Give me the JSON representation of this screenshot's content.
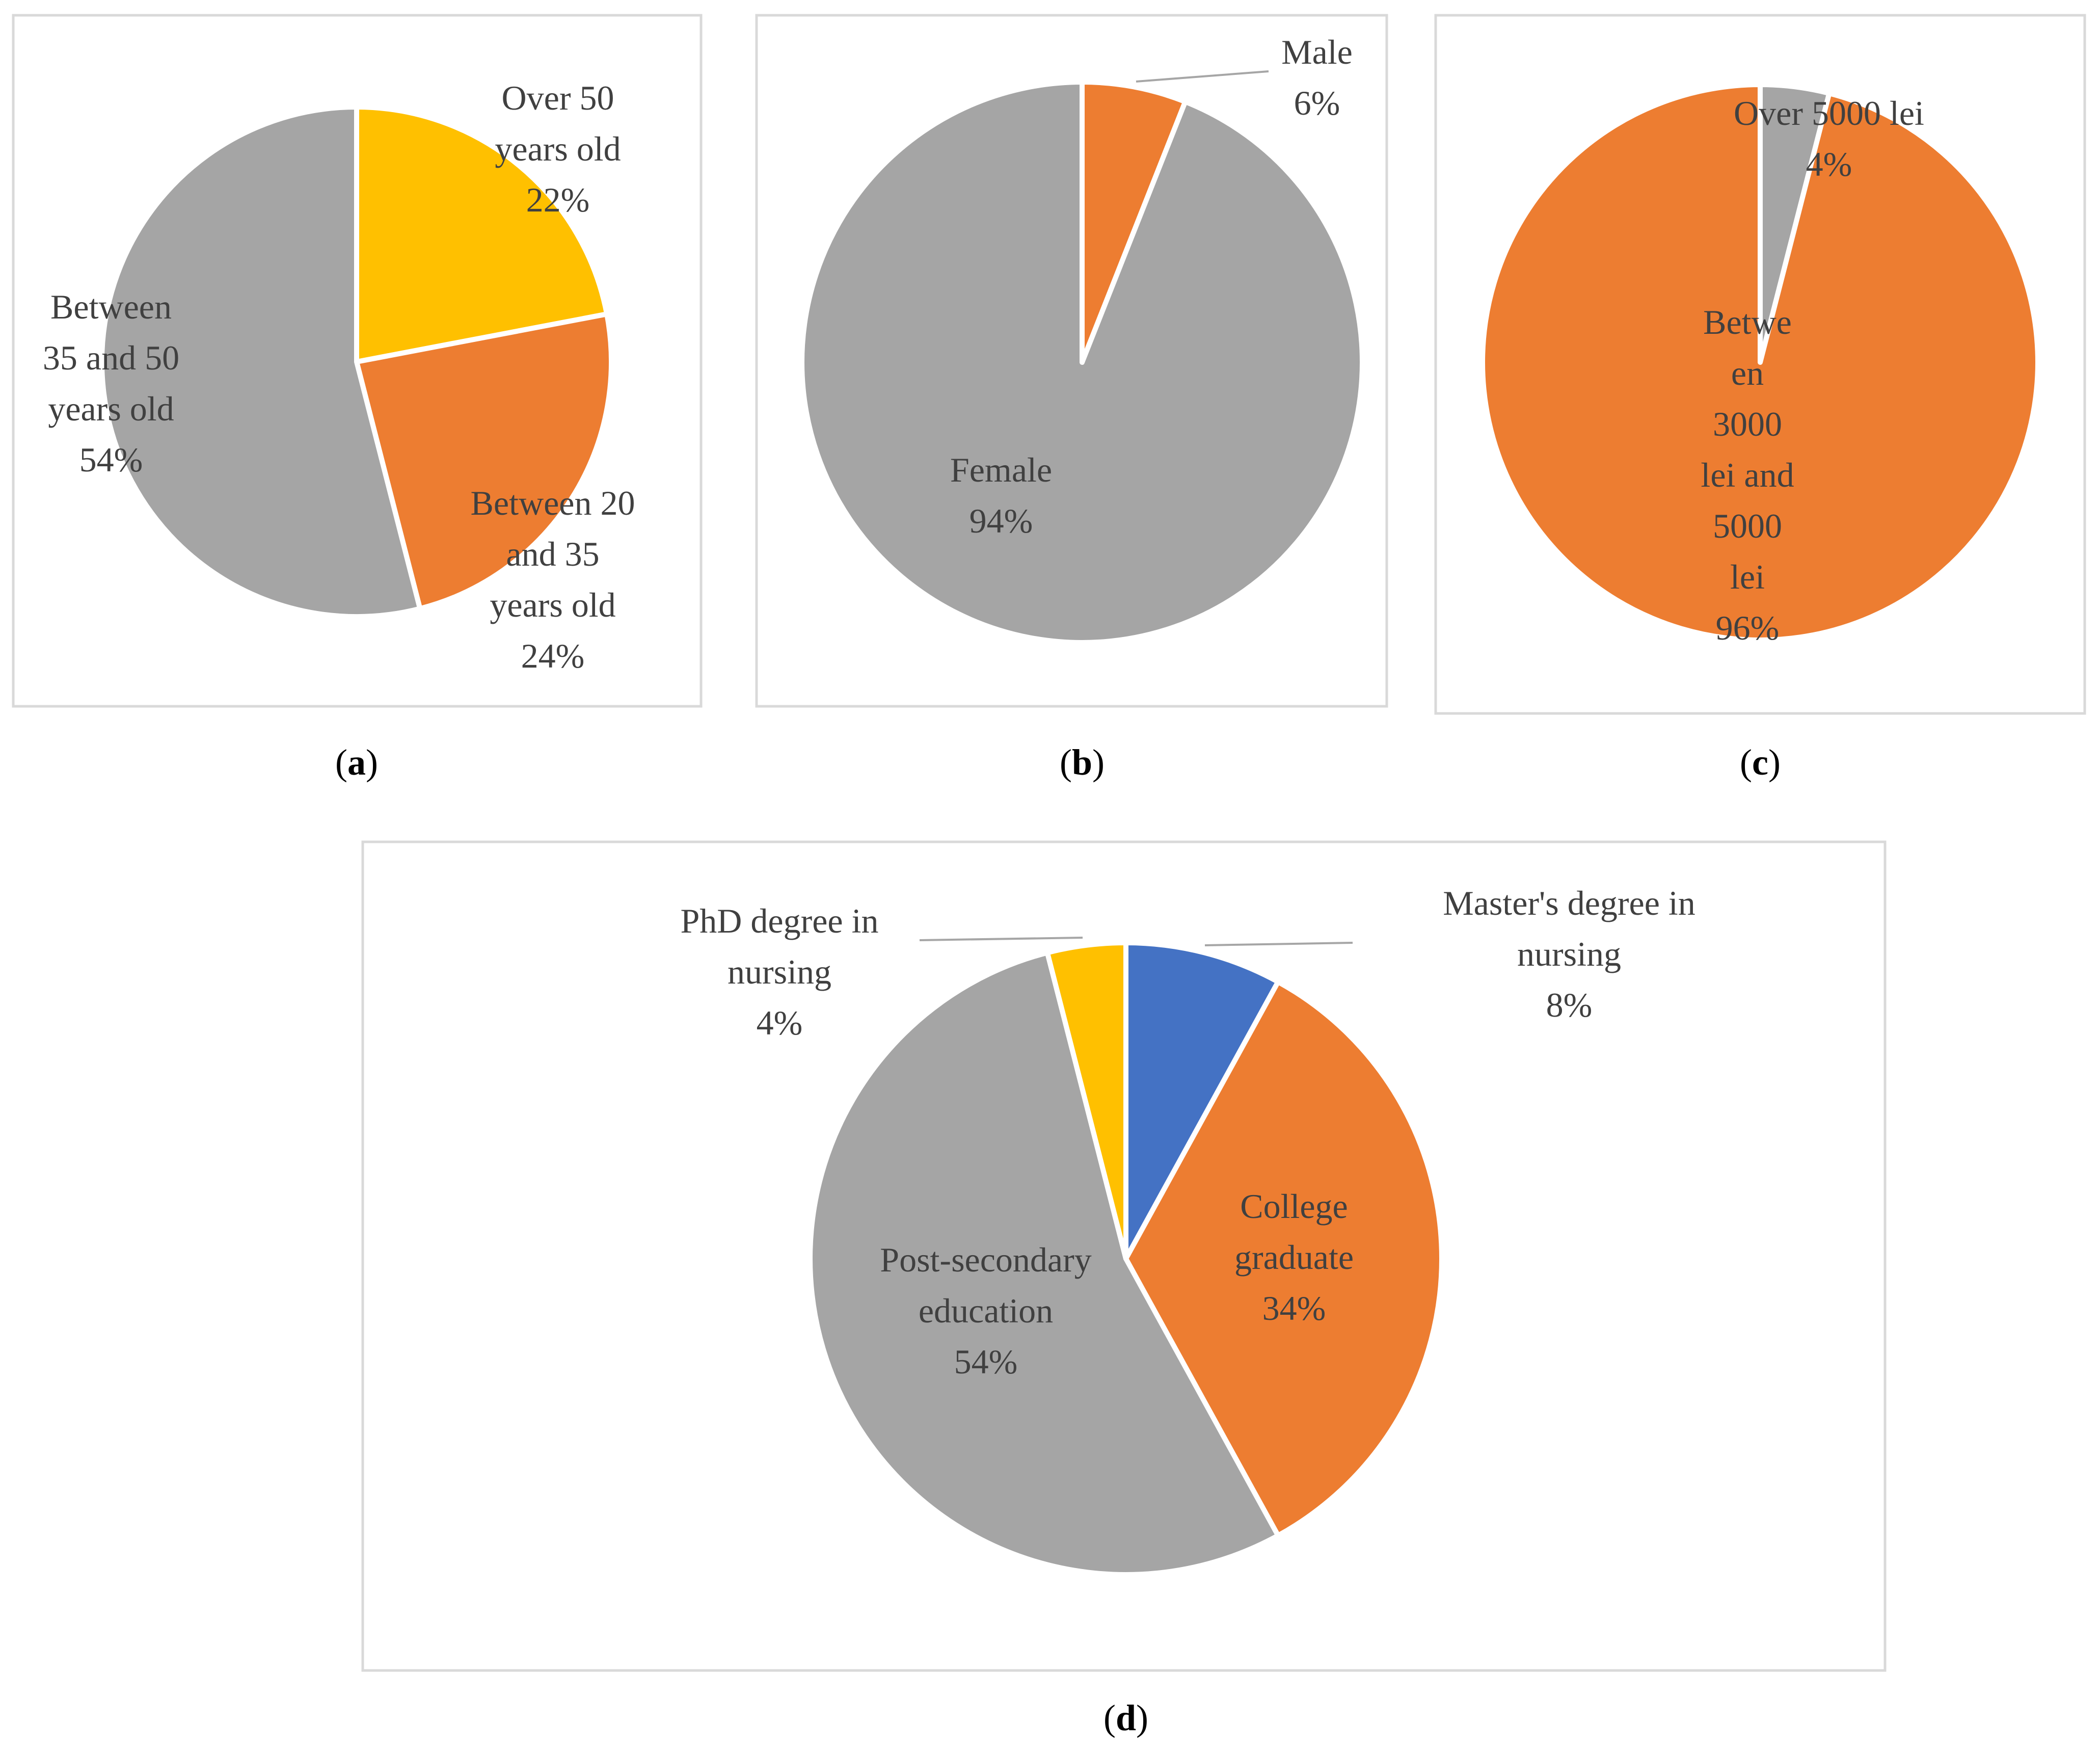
{
  "chart_data": [
    {
      "type": "pie",
      "id": "a",
      "caption": "a",
      "slices": [
        {
          "label_lines": [
            "Over 50",
            "years old",
            "22%"
          ],
          "value": 22,
          "color": "#FFC000"
        },
        {
          "label_lines": [
            "Between 20",
            "and 35",
            "years old",
            "24%"
          ],
          "value": 24,
          "color": "#ED7D31"
        },
        {
          "label_lines": [
            "Between",
            "35 and 50",
            "years old",
            "54%"
          ],
          "value": 54,
          "color": "#A5A5A5"
        }
      ]
    },
    {
      "type": "pie",
      "id": "b",
      "caption": "b",
      "slices": [
        {
          "label_lines": [
            "Male",
            "6%"
          ],
          "value": 6,
          "color": "#ED7D31"
        },
        {
          "label_lines": [
            "Female",
            "94%"
          ],
          "value": 94,
          "color": "#A5A5A5"
        }
      ]
    },
    {
      "type": "pie",
      "id": "c",
      "caption": "c",
      "slices": [
        {
          "label_lines": [
            "Over 5000 lei",
            "4%"
          ],
          "value": 4,
          "color": "#A5A5A5"
        },
        {
          "label_lines": [
            "Betwe",
            "en",
            "3000",
            "lei and",
            "5000",
            "lei",
            "96%"
          ],
          "value": 96,
          "color": "#ED7D31"
        }
      ]
    },
    {
      "type": "pie",
      "id": "d",
      "caption": "d",
      "slices": [
        {
          "label_lines": [
            "Master's degree in",
            "nursing",
            "8%"
          ],
          "value": 8,
          "color": "#4472C4"
        },
        {
          "label_lines": [
            "College",
            "graduate",
            "34%"
          ],
          "value": 34,
          "color": "#ED7D31"
        },
        {
          "label_lines": [
            "Post-secondary",
            "education",
            "54%"
          ],
          "value": 54,
          "color": "#A5A5A5"
        },
        {
          "label_lines": [
            "PhD degree in",
            "nursing",
            "4%"
          ],
          "value": 4,
          "color": "#FFC000"
        }
      ]
    }
  ]
}
